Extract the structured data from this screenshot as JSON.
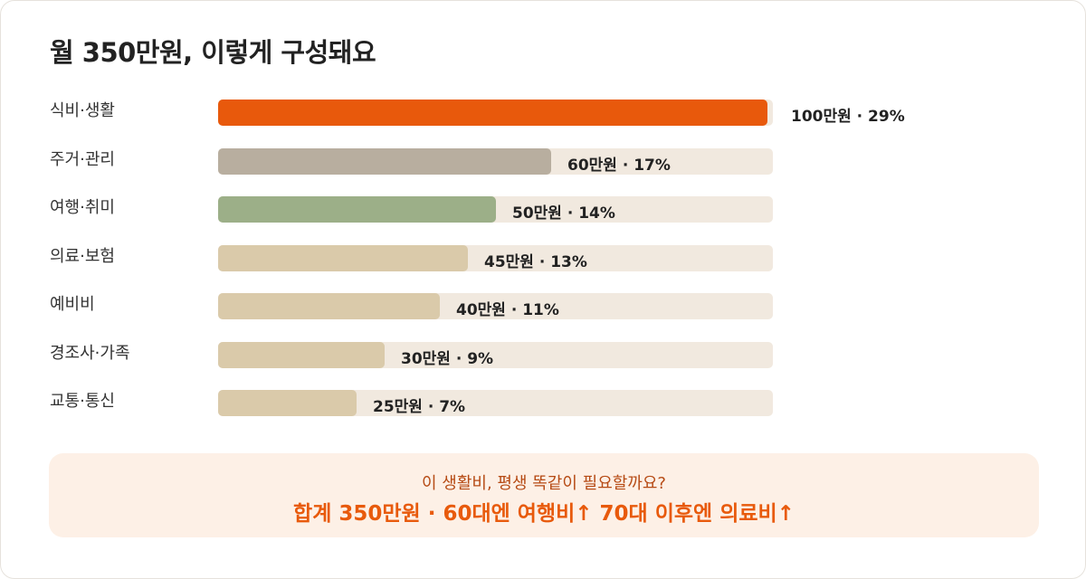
{
  "title": "월 350만원, 이렇게 구성돼요",
  "chart_data": {
    "type": "bar",
    "orientation": "horizontal",
    "categories": [
      "식비·생활",
      "주거·관리",
      "여행·취미",
      "의료·보험",
      "예비비",
      "경조사·가족",
      "교통·통신"
    ],
    "values": [
      100,
      60,
      50,
      45,
      40,
      30,
      25
    ],
    "percents": [
      29,
      17,
      14,
      13,
      11,
      9,
      7
    ],
    "value_labels": [
      "100만원 · 29%",
      "60만원 · 17%",
      "50만원 · 14%",
      "45만원 · 13%",
      "40만원 · 11%",
      "30만원 · 9%",
      "25만원 · 7%"
    ],
    "colors": [
      "#e8590c",
      "#b8ae9f",
      "#9caf88",
      "#dacaaa",
      "#dacaaa",
      "#dacaaa",
      "#dacaaa"
    ],
    "xlim": [
      0,
      100
    ],
    "grid": false,
    "legend": "none"
  },
  "note": {
    "line1": "이 생활비, 평생 똑같이 필요할까요?",
    "line2": "합계 350만원 · 60대엔 여행비↑ 70대 이후엔 의료비↑"
  },
  "colors": {
    "track": "#f1e9df",
    "accent": "#e8590c",
    "note_background": "#fdf0e6"
  }
}
